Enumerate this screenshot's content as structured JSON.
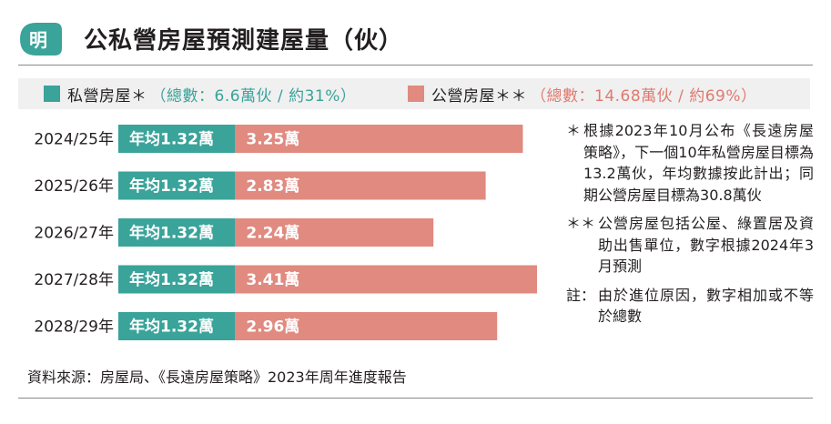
{
  "logo": {
    "char": "明",
    "icon": "ming-pao-logo-icon"
  },
  "title": "公私營房屋預測建屋量（伙）",
  "legend": [
    {
      "label": "私營房屋＊",
      "note": "（總數：6.6萬伙 / 約31%）",
      "color": "#3aa39a",
      "note_color": "#3aa39a"
    },
    {
      "label": "公營房屋＊＊",
      "note": "（總數：14.68萬伙 / 約69%）",
      "color": "#e08a80",
      "note_color": "#e07a6f"
    }
  ],
  "chart_data": {
    "type": "bar",
    "stacked": true,
    "orientation": "horizontal",
    "categories": [
      "2024/25年",
      "2025/26年",
      "2026/27年",
      "2027/28年",
      "2028/29年"
    ],
    "series": [
      {
        "name": "私營房屋＊",
        "values": [
          1.32,
          1.32,
          1.32,
          1.32,
          1.32
        ],
        "labels": [
          "年均1.32萬",
          "年均1.32萬",
          "年均1.32萬",
          "年均1.32萬",
          "年均1.32萬"
        ],
        "color": "#3aa39a"
      },
      {
        "name": "公營房屋＊＊",
        "values": [
          3.25,
          2.83,
          2.24,
          3.41,
          2.96
        ],
        "labels": [
          "3.25萬",
          "2.83萬",
          "2.24萬",
          "3.41萬",
          "2.96萬"
        ],
        "color": "#e08a80"
      }
    ],
    "unit": "萬伙",
    "xlim": [
      0,
      4.73
    ],
    "grid": false,
    "legend_position": "top"
  },
  "notes": [
    {
      "mark": "＊",
      "text": "根據2023年10月公布《長遠房屋策略》，下一個10年私營房屋目標為13.2萬伙，年均數據按此計出；同期公營房屋目標為30.8萬伙"
    },
    {
      "mark": "＊＊",
      "text": "公營房屋包括公屋、綠置居及資助出售單位，數字根據2024年3月預測"
    },
    {
      "mark": "註：",
      "text": "由於進位原因，數字相加或不等於總數"
    }
  ],
  "source": "資料來源：房屋局、《長遠房屋策略》2023年周年進度報告"
}
